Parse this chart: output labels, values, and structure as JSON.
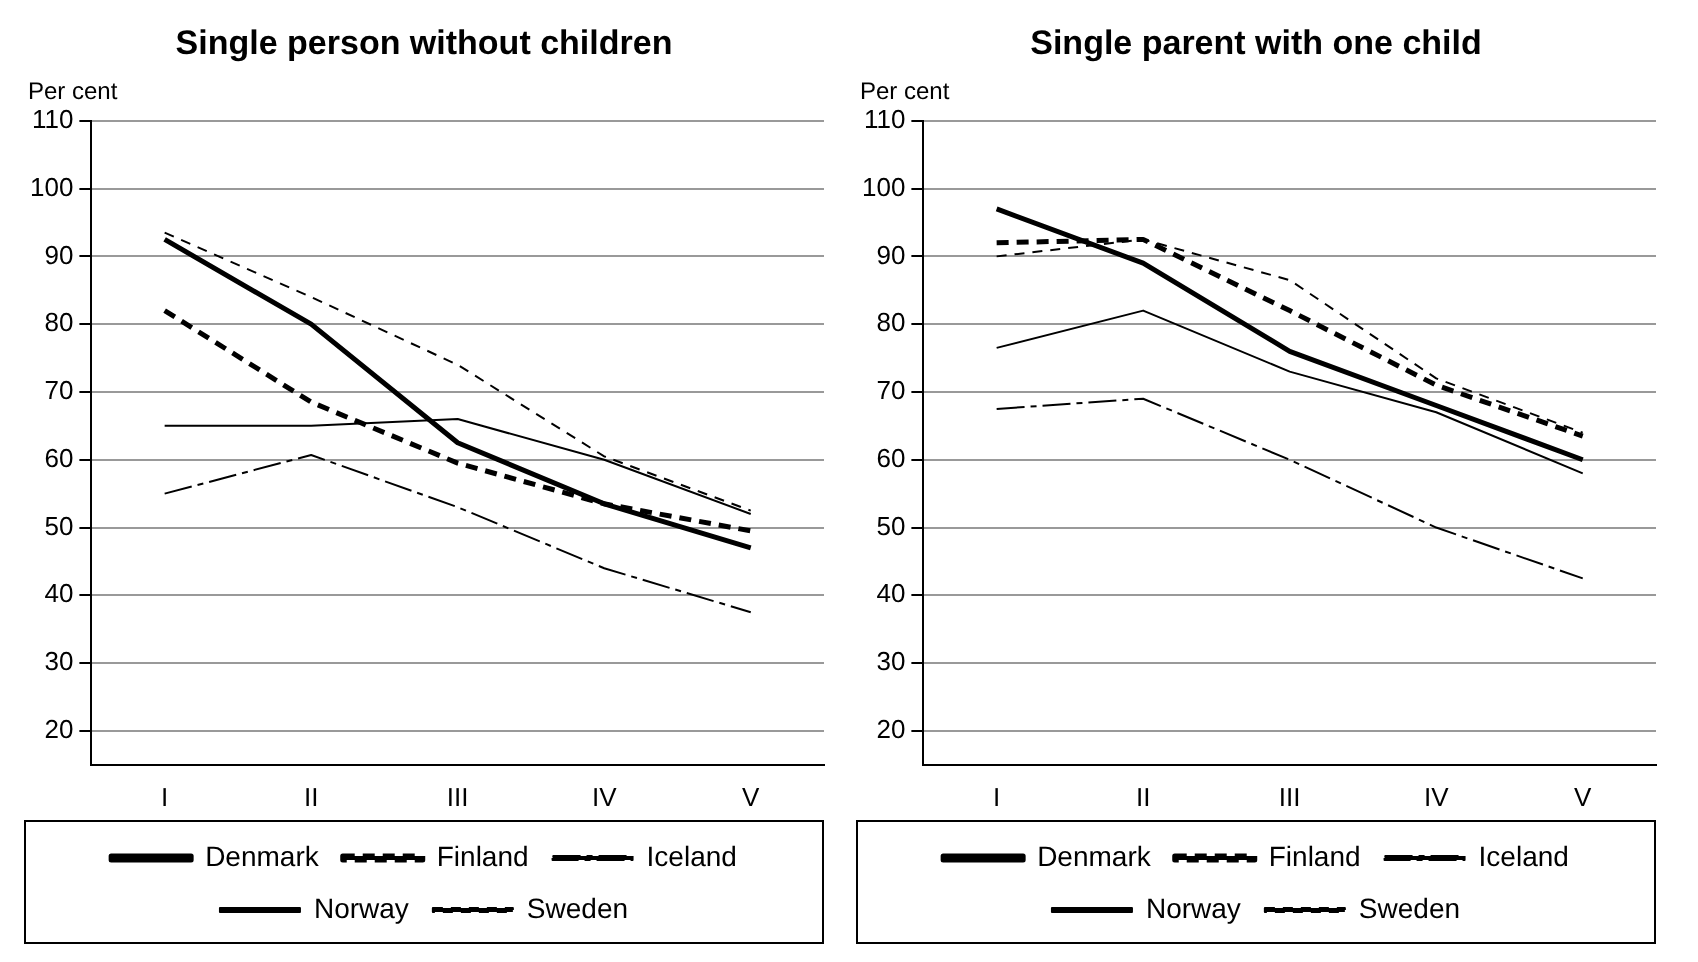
{
  "chart_data": [
    {
      "type": "line",
      "title": "Single person without children",
      "ylabel": "Per cent",
      "categories": [
        "I",
        "II",
        "III",
        "IV",
        "V"
      ],
      "ylim": [
        15,
        110
      ],
      "yticks": [
        20,
        30,
        40,
        50,
        60,
        70,
        80,
        90,
        100,
        110
      ],
      "grid": "y",
      "legend": "bottom",
      "marker": "none",
      "series": [
        {
          "name": "Denmark",
          "color": "#000000",
          "line_style": "solid",
          "values": [
            92.5,
            80,
            62.5,
            53.5,
            47
          ]
        },
        {
          "name": "Finland",
          "color": "#000000",
          "line_style": "dashed",
          "values": [
            82,
            68.5,
            59.5,
            53.5,
            49.5
          ]
        },
        {
          "name": "Iceland",
          "color": "#000000",
          "line_style": "dashed",
          "values": [
            55,
            60.7,
            53,
            44,
            37.5
          ]
        },
        {
          "name": "Norway",
          "color": "#000000",
          "line_style": "solid",
          "values": [
            65,
            65,
            66,
            60,
            52
          ]
        },
        {
          "name": "Sweden",
          "color": "#000000",
          "line_style": "dashed",
          "values": [
            93.5,
            84,
            74,
            60.5,
            52.5
          ]
        }
      ]
    },
    {
      "type": "line",
      "title": "Single parent with one child",
      "ylabel": "Per cent",
      "categories": [
        "I",
        "II",
        "III",
        "IV",
        "V"
      ],
      "ylim": [
        15,
        110
      ],
      "yticks": [
        20,
        30,
        40,
        50,
        60,
        70,
        80,
        90,
        100,
        110
      ],
      "grid": "y",
      "legend": "bottom",
      "marker": "none",
      "series": [
        {
          "name": "Denmark",
          "color": "#000000",
          "line_style": "solid",
          "values": [
            97,
            89,
            76,
            68,
            60
          ]
        },
        {
          "name": "Finland",
          "color": "#000000",
          "line_style": "dashed",
          "values": [
            92,
            92.5,
            82,
            71,
            63.5
          ]
        },
        {
          "name": "Iceland",
          "color": "#000000",
          "line_style": "dashed",
          "values": [
            67.5,
            69,
            60,
            50,
            42.5
          ]
        },
        {
          "name": "Norway",
          "color": "#000000",
          "line_style": "solid",
          "values": [
            76.5,
            82,
            73,
            67,
            58
          ]
        },
        {
          "name": "Sweden",
          "color": "#000000",
          "line_style": "dashed",
          "values": [
            90,
            92.5,
            86.5,
            72,
            64
          ]
        }
      ]
    }
  ]
}
